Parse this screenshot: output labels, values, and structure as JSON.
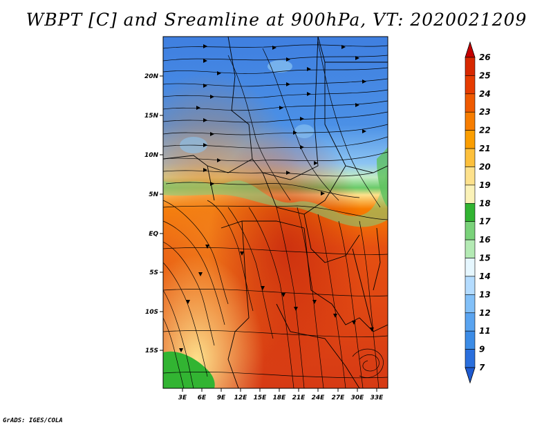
{
  "title": "WBPT [C] and Sreamline at 900hPa, VT: 2020021209",
  "credit": "GrADS: IGES/COLA",
  "lat_labels": [
    "20N",
    "15N",
    "10N",
    "5N",
    "EQ",
    "5S",
    "10S",
    "15S"
  ],
  "lon_labels": [
    "3E",
    "6E",
    "9E",
    "12E",
    "15E",
    "18E",
    "21E",
    "24E",
    "27E",
    "30E",
    "33E"
  ],
  "colorbar": {
    "levels": [
      "26",
      "25",
      "24",
      "23",
      "22",
      "21",
      "20",
      "19",
      "18",
      "17",
      "16",
      "15",
      "14",
      "13",
      "12",
      "11",
      "9",
      "7"
    ],
    "colors": [
      "#c40000",
      "#d72800",
      "#e63c00",
      "#ef5a00",
      "#f77d00",
      "#fb9e00",
      "#fdc03c",
      "#fde18c",
      "#fbf2b8",
      "#32b432",
      "#7ad27a",
      "#b4eab4",
      "#e6f7ff",
      "#b4dcff",
      "#82c0f8",
      "#5aa4f0",
      "#3c8ce6",
      "#2a6fdd",
      "#1e5ad0"
    ]
  },
  "colors": {
    "north_blue": "#4b90e6",
    "transition_green": "#72d072",
    "south_red": "#d73c14",
    "southwest_green": "#32b432"
  }
}
